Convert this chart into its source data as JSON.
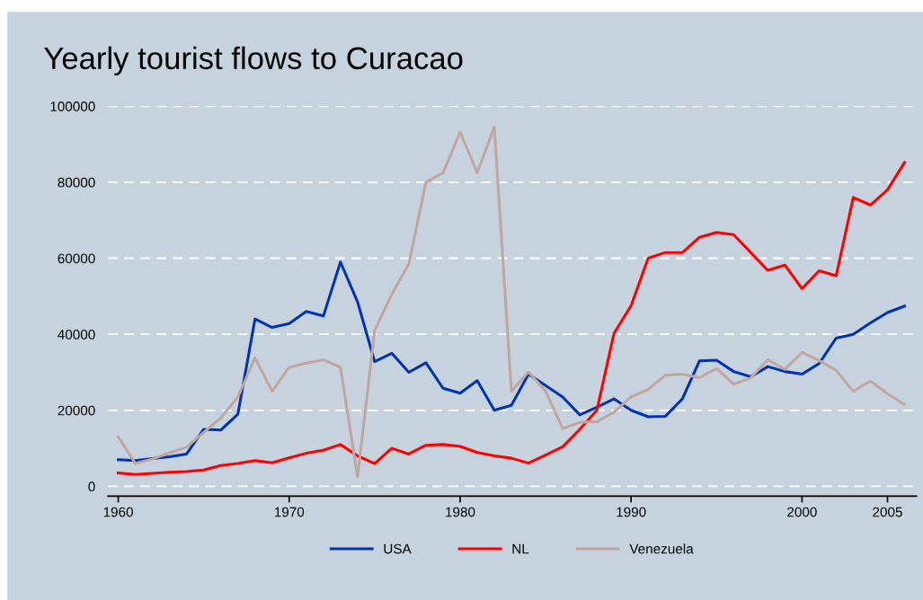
{
  "chart_data": {
    "type": "line",
    "title": "Yearly tourist flows to Curacao",
    "x": [
      1960,
      1961,
      1962,
      1963,
      1964,
      1965,
      1966,
      1967,
      1968,
      1969,
      1970,
      1971,
      1972,
      1973,
      1974,
      1975,
      1976,
      1977,
      1978,
      1979,
      1980,
      1981,
      1982,
      1983,
      1984,
      1985,
      1986,
      1987,
      1988,
      1989,
      1990,
      1991,
      1992,
      1993,
      1994,
      1995,
      1996,
      1997,
      1998,
      1999,
      2000,
      2001,
      2002,
      2003,
      2004,
      2005,
      2006
    ],
    "series": [
      {
        "name": "USA",
        "color": "#0033b0",
        "values": [
          7000,
          6800,
          7300,
          7800,
          8500,
          15000,
          14800,
          19000,
          44000,
          41800,
          42800,
          46000,
          44800,
          59000,
          48500,
          32800,
          35000,
          30000,
          32500,
          25800,
          24500,
          27800,
          20000,
          21300,
          29500,
          26500,
          23500,
          18800,
          20800,
          23000,
          20000,
          18300,
          18400,
          23000,
          33000,
          33200,
          30200,
          28800,
          31500,
          30200,
          29500,
          32300,
          39000,
          40000,
          43000,
          45700,
          47400
        ]
      },
      {
        "name": "NL",
        "color": "#ff0000",
        "values": [
          3500,
          3100,
          3400,
          3700,
          3900,
          4300,
          5500,
          6000,
          6800,
          6200,
          7500,
          8700,
          9500,
          11000,
          8000,
          6000,
          10000,
          8500,
          10800,
          11000,
          10500,
          8900,
          8000,
          7400,
          6100,
          8200,
          10400,
          15000,
          20000,
          40200,
          47500,
          60000,
          61500,
          61500,
          65500,
          66800,
          66200,
          61500,
          56800,
          58200,
          52000,
          56700,
          55400,
          76000,
          74000,
          78000,
          85200
        ]
      },
      {
        "name": "Venezuela",
        "color": "#c0a6a0",
        "values": [
          13000,
          6000,
          7200,
          8800,
          10300,
          14200,
          18000,
          23500,
          33800,
          25000,
          31300,
          32400,
          33300,
          31300,
          2500,
          41000,
          50500,
          58500,
          80000,
          82500,
          93200,
          82500,
          94500,
          25000,
          30100,
          25000,
          15200,
          16800,
          17000,
          19500,
          23500,
          25500,
          29200,
          29500,
          28600,
          31000,
          26900,
          28500,
          33300,
          30800,
          35200,
          33100,
          30500,
          25000,
          27700,
          24400,
          21500
        ]
      }
    ],
    "xlim": [
      1959.4,
      2006.7
    ],
    "xticks": [
      1960,
      1970,
      1980,
      1990,
      2000,
      2005
    ],
    "ylim": [
      -2600,
      100000
    ],
    "yticks": [
      0,
      20000,
      40000,
      60000,
      80000,
      100000
    ],
    "grid": "y",
    "legend": "bottom",
    "line_style": "solid",
    "marker": "none"
  }
}
